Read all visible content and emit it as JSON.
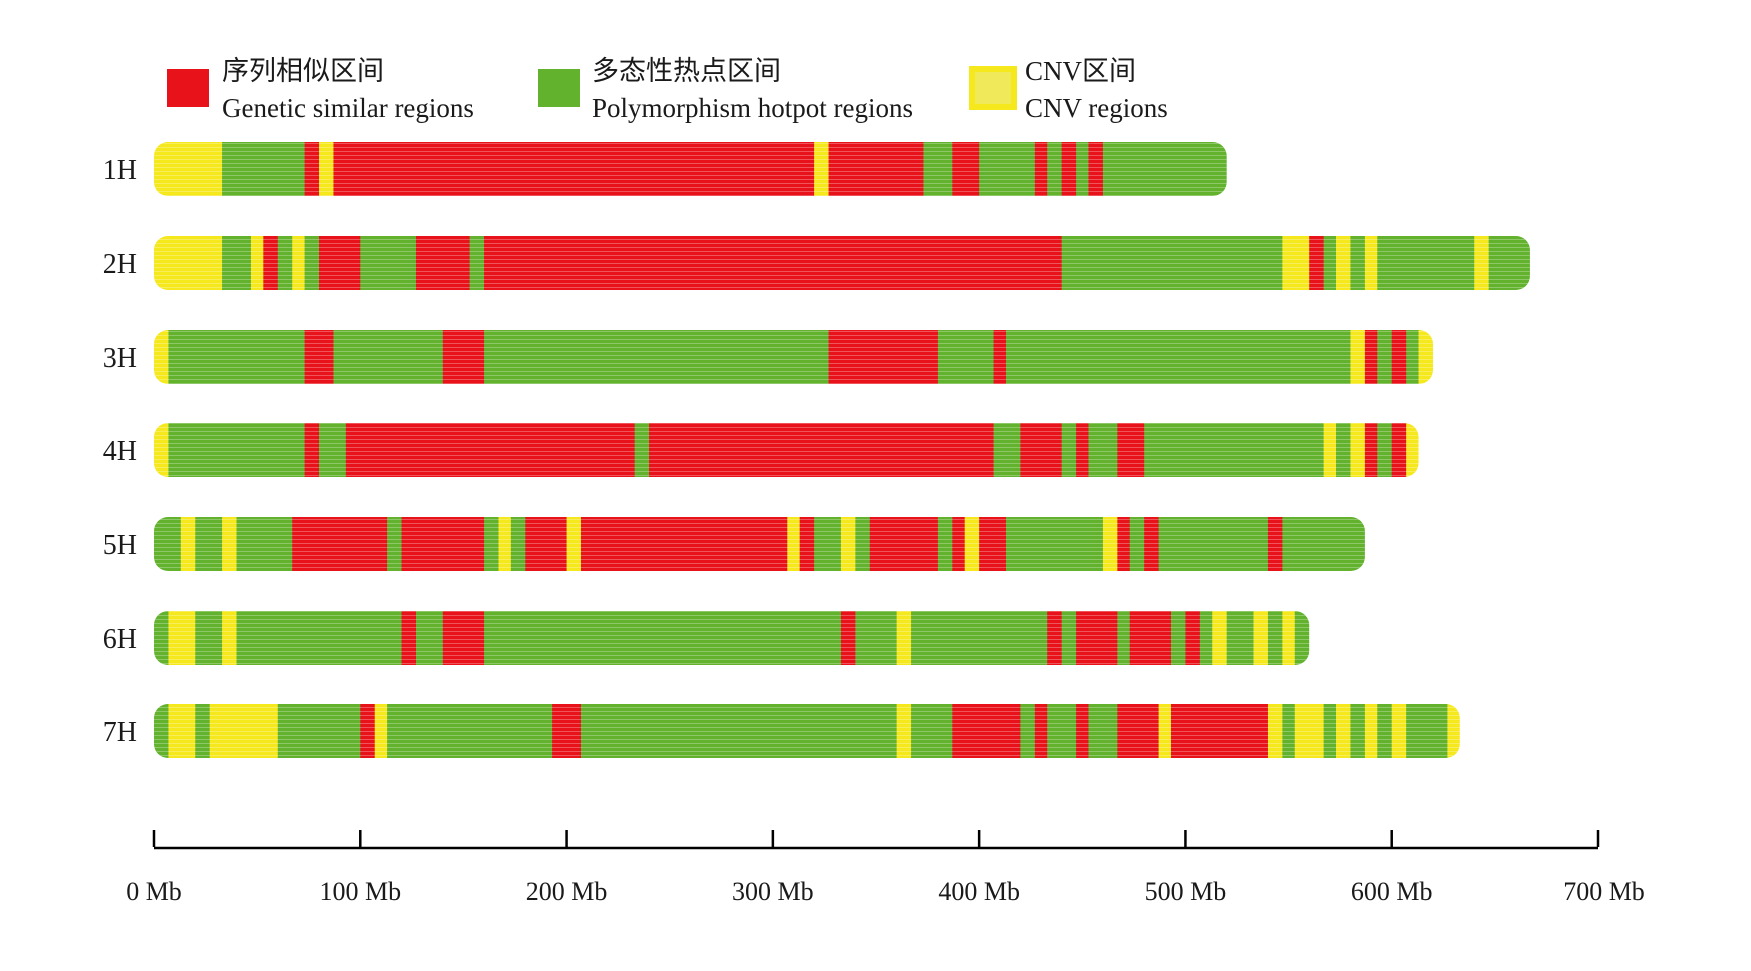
{
  "chart_data": {
    "type": "heatmap",
    "xlim": [
      0,
      700
    ],
    "x_unit": "Mb",
    "x_ticks": [
      0,
      100,
      200,
      300,
      400,
      500,
      600,
      700
    ],
    "x_tick_labels": [
      "0 Mb",
      "100 Mb",
      "200 Mb",
      "300 Mb",
      "400 Mb",
      "500 Mb",
      "600 Mb",
      "700 Mb"
    ],
    "colors": {
      "similar": "#e8121a",
      "hotspot": "#63b22e",
      "cnv": "#f5e81c",
      "axis": "#000000"
    },
    "legend": [
      {
        "key": "similar",
        "label_zh": "序列相似区间",
        "label_en": "Genetic similar regions"
      },
      {
        "key": "hotspot",
        "label_zh": "多态性热点区间",
        "label_en": "Polymorphism hotpot regions"
      },
      {
        "key": "cnv",
        "label_zh": "CNV区间",
        "label_en": "CNV regions"
      }
    ],
    "chromosomes": [
      {
        "name": "1H",
        "length": 520,
        "segments": [
          [
            0,
            33,
            "cnv"
          ],
          [
            33,
            73,
            "hotspot"
          ],
          [
            73,
            80,
            "similar"
          ],
          [
            80,
            87,
            "cnv"
          ],
          [
            87,
            320,
            "similar"
          ],
          [
            320,
            327,
            "cnv"
          ],
          [
            327,
            373,
            "similar"
          ],
          [
            373,
            387,
            "hotspot"
          ],
          [
            387,
            400,
            "similar"
          ],
          [
            400,
            427,
            "hotspot"
          ],
          [
            427,
            433,
            "similar"
          ],
          [
            433,
            440,
            "hotspot"
          ],
          [
            440,
            447,
            "similar"
          ],
          [
            447,
            453,
            "hotspot"
          ],
          [
            453,
            460,
            "similar"
          ],
          [
            460,
            520,
            "hotspot"
          ]
        ]
      },
      {
        "name": "2H",
        "length": 667,
        "segments": [
          [
            0,
            33,
            "cnv"
          ],
          [
            33,
            47,
            "hotspot"
          ],
          [
            47,
            53,
            "cnv"
          ],
          [
            53,
            60,
            "similar"
          ],
          [
            60,
            67,
            "hotspot"
          ],
          [
            67,
            73,
            "cnv"
          ],
          [
            73,
            80,
            "hotspot"
          ],
          [
            80,
            100,
            "similar"
          ],
          [
            100,
            127,
            "hotspot"
          ],
          [
            127,
            153,
            "similar"
          ],
          [
            153,
            160,
            "hotspot"
          ],
          [
            160,
            440,
            "similar"
          ],
          [
            440,
            547,
            "hotspot"
          ],
          [
            547,
            560,
            "cnv"
          ],
          [
            560,
            567,
            "similar"
          ],
          [
            567,
            573,
            "hotspot"
          ],
          [
            573,
            580,
            "cnv"
          ],
          [
            580,
            587,
            "hotspot"
          ],
          [
            587,
            593,
            "cnv"
          ],
          [
            593,
            640,
            "hotspot"
          ],
          [
            640,
            647,
            "cnv"
          ],
          [
            647,
            667,
            "hotspot"
          ]
        ]
      },
      {
        "name": "3H",
        "length": 620,
        "segments": [
          [
            0,
            7,
            "cnv"
          ],
          [
            7,
            73,
            "hotspot"
          ],
          [
            73,
            87,
            "similar"
          ],
          [
            87,
            140,
            "hotspot"
          ],
          [
            140,
            160,
            "similar"
          ],
          [
            160,
            327,
            "hotspot"
          ],
          [
            327,
            380,
            "similar"
          ],
          [
            380,
            407,
            "hotspot"
          ],
          [
            407,
            413,
            "similar"
          ],
          [
            413,
            580,
            "hotspot"
          ],
          [
            580,
            587,
            "cnv"
          ],
          [
            587,
            593,
            "similar"
          ],
          [
            593,
            600,
            "hotspot"
          ],
          [
            600,
            607,
            "similar"
          ],
          [
            607,
            613,
            "hotspot"
          ],
          [
            613,
            620,
            "cnv"
          ]
        ]
      },
      {
        "name": "4H",
        "length": 613,
        "segments": [
          [
            0,
            7,
            "cnv"
          ],
          [
            7,
            73,
            "hotspot"
          ],
          [
            73,
            80,
            "similar"
          ],
          [
            80,
            93,
            "hotspot"
          ],
          [
            93,
            233,
            "similar"
          ],
          [
            233,
            240,
            "hotspot"
          ],
          [
            240,
            407,
            "similar"
          ],
          [
            407,
            420,
            "hotspot"
          ],
          [
            420,
            440,
            "similar"
          ],
          [
            440,
            447,
            "hotspot"
          ],
          [
            447,
            453,
            "similar"
          ],
          [
            453,
            467,
            "hotspot"
          ],
          [
            467,
            480,
            "similar"
          ],
          [
            480,
            567,
            "hotspot"
          ],
          [
            567,
            573,
            "cnv"
          ],
          [
            573,
            580,
            "hotspot"
          ],
          [
            580,
            587,
            "cnv"
          ],
          [
            587,
            593,
            "similar"
          ],
          [
            593,
            600,
            "hotspot"
          ],
          [
            600,
            607,
            "similar"
          ],
          [
            607,
            613,
            "cnv"
          ]
        ]
      },
      {
        "name": "5H",
        "length": 587,
        "segments": [
          [
            0,
            13,
            "hotspot"
          ],
          [
            13,
            20,
            "cnv"
          ],
          [
            20,
            33,
            "hotspot"
          ],
          [
            33,
            40,
            "cnv"
          ],
          [
            40,
            67,
            "hotspot"
          ],
          [
            67,
            113,
            "similar"
          ],
          [
            113,
            120,
            "hotspot"
          ],
          [
            120,
            160,
            "similar"
          ],
          [
            160,
            167,
            "hotspot"
          ],
          [
            167,
            173,
            "cnv"
          ],
          [
            173,
            180,
            "hotspot"
          ],
          [
            180,
            200,
            "similar"
          ],
          [
            200,
            207,
            "cnv"
          ],
          [
            207,
            307,
            "similar"
          ],
          [
            307,
            313,
            "cnv"
          ],
          [
            313,
            320,
            "similar"
          ],
          [
            320,
            333,
            "hotspot"
          ],
          [
            333,
            340,
            "cnv"
          ],
          [
            340,
            347,
            "hotspot"
          ],
          [
            347,
            380,
            "similar"
          ],
          [
            380,
            387,
            "hotspot"
          ],
          [
            387,
            393,
            "similar"
          ],
          [
            393,
            400,
            "cnv"
          ],
          [
            400,
            413,
            "similar"
          ],
          [
            413,
            460,
            "hotspot"
          ],
          [
            460,
            467,
            "cnv"
          ],
          [
            467,
            473,
            "similar"
          ],
          [
            473,
            480,
            "hotspot"
          ],
          [
            480,
            487,
            "similar"
          ],
          [
            487,
            540,
            "hotspot"
          ],
          [
            540,
            547,
            "similar"
          ],
          [
            547,
            587,
            "hotspot"
          ]
        ]
      },
      {
        "name": "6H",
        "length": 560,
        "segments": [
          [
            0,
            7,
            "hotspot"
          ],
          [
            7,
            20,
            "cnv"
          ],
          [
            20,
            33,
            "hotspot"
          ],
          [
            33,
            40,
            "cnv"
          ],
          [
            40,
            120,
            "hotspot"
          ],
          [
            120,
            127,
            "similar"
          ],
          [
            127,
            140,
            "hotspot"
          ],
          [
            140,
            160,
            "similar"
          ],
          [
            160,
            333,
            "hotspot"
          ],
          [
            333,
            340,
            "similar"
          ],
          [
            340,
            360,
            "hotspot"
          ],
          [
            360,
            367,
            "cnv"
          ],
          [
            367,
            433,
            "hotspot"
          ],
          [
            433,
            440,
            "similar"
          ],
          [
            440,
            447,
            "hotspot"
          ],
          [
            447,
            467,
            "similar"
          ],
          [
            467,
            473,
            "hotspot"
          ],
          [
            473,
            493,
            "similar"
          ],
          [
            493,
            500,
            "hotspot"
          ],
          [
            500,
            507,
            "similar"
          ],
          [
            507,
            513,
            "hotspot"
          ],
          [
            513,
            520,
            "cnv"
          ],
          [
            520,
            533,
            "hotspot"
          ],
          [
            533,
            540,
            "cnv"
          ],
          [
            540,
            547,
            "hotspot"
          ],
          [
            547,
            553,
            "cnv"
          ],
          [
            553,
            560,
            "hotspot"
          ]
        ]
      },
      {
        "name": "7H",
        "length": 633,
        "segments": [
          [
            0,
            7,
            "hotspot"
          ],
          [
            7,
            20,
            "cnv"
          ],
          [
            20,
            27,
            "hotspot"
          ],
          [
            27,
            60,
            "cnv"
          ],
          [
            60,
            100,
            "hotspot"
          ],
          [
            100,
            107,
            "similar"
          ],
          [
            107,
            113,
            "cnv"
          ],
          [
            113,
            193,
            "hotspot"
          ],
          [
            193,
            207,
            "similar"
          ],
          [
            207,
            360,
            "hotspot"
          ],
          [
            360,
            367,
            "cnv"
          ],
          [
            367,
            387,
            "hotspot"
          ],
          [
            387,
            420,
            "similar"
          ],
          [
            420,
            427,
            "hotspot"
          ],
          [
            427,
            433,
            "similar"
          ],
          [
            433,
            447,
            "hotspot"
          ],
          [
            447,
            453,
            "similar"
          ],
          [
            453,
            467,
            "hotspot"
          ],
          [
            467,
            487,
            "similar"
          ],
          [
            487,
            493,
            "cnv"
          ],
          [
            493,
            540,
            "similar"
          ],
          [
            540,
            547,
            "cnv"
          ],
          [
            547,
            553,
            "hotspot"
          ],
          [
            553,
            567,
            "cnv"
          ],
          [
            567,
            573,
            "hotspot"
          ],
          [
            573,
            580,
            "cnv"
          ],
          [
            580,
            587,
            "hotspot"
          ],
          [
            587,
            593,
            "cnv"
          ],
          [
            593,
            600,
            "hotspot"
          ],
          [
            600,
            607,
            "cnv"
          ],
          [
            607,
            627,
            "hotspot"
          ],
          [
            627,
            633,
            "cnv"
          ]
        ]
      }
    ]
  }
}
